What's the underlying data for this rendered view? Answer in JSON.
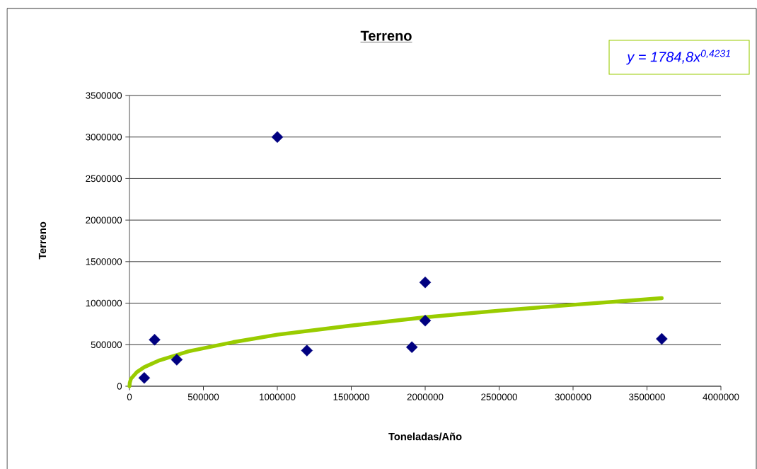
{
  "chart_data": {
    "type": "scatter",
    "title": "Terreno",
    "xlabel": "Toneladas/Año",
    "ylabel": "Terreno",
    "xlim": [
      0,
      4000000
    ],
    "ylim": [
      0,
      3500000
    ],
    "xticks": [
      0,
      500000,
      1000000,
      1500000,
      2000000,
      2500000,
      3000000,
      3500000,
      4000000
    ],
    "yticks": [
      0,
      500000,
      1000000,
      1500000,
      2000000,
      2500000,
      3000000,
      3500000
    ],
    "grid": "y",
    "legend": false,
    "marker": "diamond",
    "annotations": [
      "y = 1784,8x$^{0,4231}$"
    ],
    "series": [
      {
        "type": "scatter",
        "color": "#000080",
        "x": [
          100000,
          170000,
          320000,
          1000000,
          1200000,
          1910000,
          2000000,
          2000000,
          3600000
        ],
        "values": [
          100000,
          560000,
          320000,
          3000000,
          430000,
          470000,
          1250000,
          790000,
          570000
        ]
      },
      {
        "type": "line",
        "marker": "none",
        "line_style": "solid",
        "color": "#99cc00",
        "x": [
          0,
          2000,
          10000,
          50000,
          100000,
          200000,
          400000,
          700000,
          1000000,
          1500000,
          2000000,
          2500000,
          3000000,
          3600000
        ],
        "values": [
          0,
          40000,
          90000,
          170000,
          230000,
          310000,
          420000,
          530000,
          620000,
          730000,
          830000,
          910000,
          980000,
          1060000
        ]
      }
    ]
  }
}
